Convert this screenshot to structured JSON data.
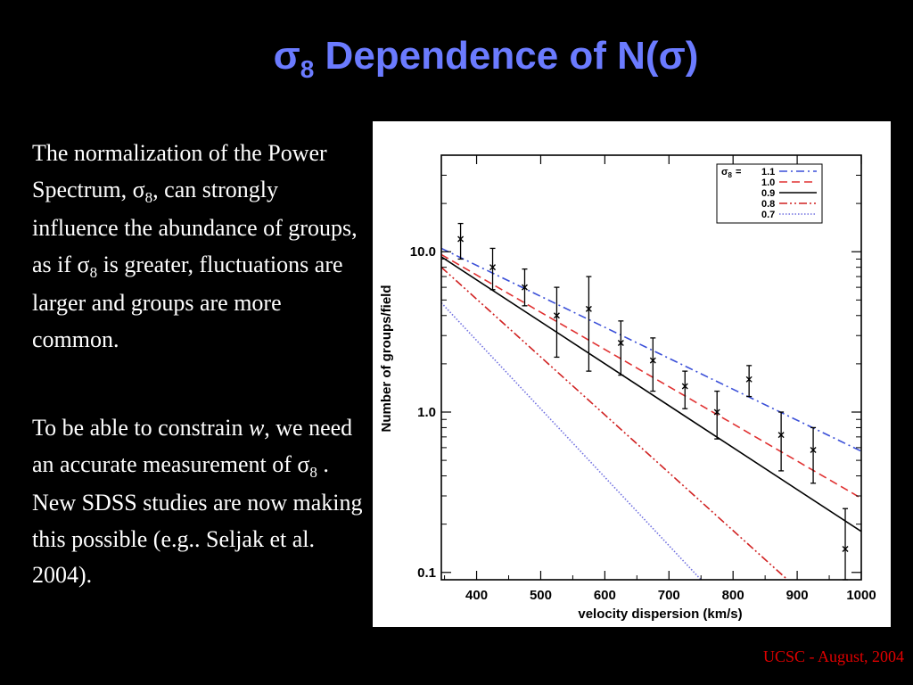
{
  "slide": {
    "title_sigma": "σ",
    "title_sub": "8",
    "title_main": " Dependence of N(",
    "title_sigma2": "σ",
    "title_end": ")",
    "p1_a": "The normalization of the Power Spectrum, σ",
    "p1_sub": "8",
    "p1_b": ", can strongly influence the abundance of groups, as if σ",
    "p1_sub2": "8",
    "p1_c": " is greater, fluctuations are larger and groups are more common.",
    "p2_a": "To be able to constrain ",
    "p2_w": "w",
    "p2_b": ", we need an accurate measurement of σ",
    "p2_sub": "8",
    "p2_c": " .  New SDSS studies are now making this possible (e.g.. Seljak et al. 2004).",
    "footer": "UCSC - August, 2004"
  },
  "colors": {
    "title": "#6b7bff",
    "footer": "#e00000",
    "sigma_1_1": "#3a4fd8",
    "sigma_1_0": "#e03030",
    "sigma_0_9": "#000000",
    "sigma_0_8": "#d02020",
    "sigma_0_7": "#7070e0"
  },
  "chart_data": {
    "type": "line",
    "xlabel": "velocity dispersion (km/s)",
    "ylabel": "Number of groups/field",
    "xlim": [
      345,
      1000
    ],
    "ylim": [
      0.09,
      40
    ],
    "yscale": "log",
    "x_ticks": [
      400,
      500,
      600,
      700,
      800,
      900,
      1000
    ],
    "y_ticks": [
      {
        "value": 0.1,
        "label": "0.1"
      },
      {
        "value": 1.0,
        "label": "1.0"
      },
      {
        "value": 10.0,
        "label": "10.0"
      }
    ],
    "legend": {
      "position": "top-right",
      "header": "σ",
      "header_sub": "8",
      "header_eq": "=",
      "entries": [
        "1.1",
        "1.0",
        "0.9",
        "0.8",
        "0.7"
      ]
    },
    "series": [
      {
        "name": "1.1",
        "style": "dash-dot",
        "color": "#3a4fd8",
        "x": [
          345,
          1000
        ],
        "y": [
          10.5,
          0.57
        ]
      },
      {
        "name": "1.0",
        "style": "dashed",
        "color": "#e03030",
        "x": [
          345,
          1000
        ],
        "y": [
          9.6,
          0.29
        ]
      },
      {
        "name": "0.9",
        "style": "solid",
        "color": "#000000",
        "x": [
          345,
          1000
        ],
        "y": [
          9.3,
          0.18
        ]
      },
      {
        "name": "0.8",
        "style": "dash-dot-dot",
        "color": "#d02020",
        "x": [
          345,
          885
        ],
        "y": [
          8.0,
          0.09
        ]
      },
      {
        "name": "0.7",
        "style": "dotted",
        "color": "#7070e0",
        "x": [
          345,
          750
        ],
        "y": [
          4.8,
          0.09
        ]
      }
    ],
    "observations": [
      {
        "x": 375,
        "y": 12.0,
        "lo": 9.0,
        "hi": 15.0
      },
      {
        "x": 425,
        "y": 8.0,
        "lo": 5.8,
        "hi": 10.5
      },
      {
        "x": 475,
        "y": 6.0,
        "lo": 4.6,
        "hi": 7.8
      },
      {
        "x": 525,
        "y": 4.0,
        "lo": 2.2,
        "hi": 6.0
      },
      {
        "x": 575,
        "y": 4.4,
        "lo": 1.8,
        "hi": 7.0
      },
      {
        "x": 625,
        "y": 2.7,
        "lo": 1.7,
        "hi": 3.7
      },
      {
        "x": 675,
        "y": 2.1,
        "lo": 1.35,
        "hi": 2.9
      },
      {
        "x": 725,
        "y": 1.45,
        "lo": 1.05,
        "hi": 1.8
      },
      {
        "x": 775,
        "y": 1.0,
        "lo": 0.68,
        "hi": 1.35
      },
      {
        "x": 825,
        "y": 1.6,
        "lo": 1.25,
        "hi": 1.95
      },
      {
        "x": 875,
        "y": 0.72,
        "lo": 0.43,
        "hi": 1.0
      },
      {
        "x": 925,
        "y": 0.58,
        "lo": 0.36,
        "hi": 0.8
      },
      {
        "x": 975,
        "y": 0.14,
        "lo": 0.09,
        "hi": 0.25
      }
    ]
  }
}
